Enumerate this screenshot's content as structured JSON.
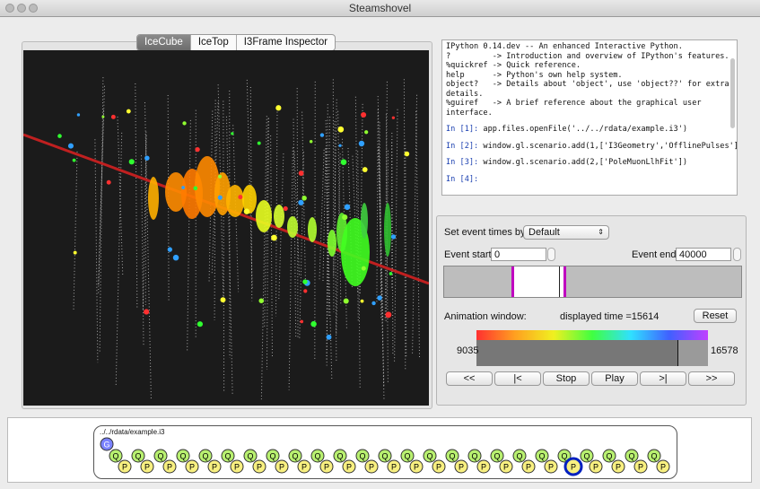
{
  "window": {
    "title": "Steamshovel"
  },
  "tabs": [
    "IceCube",
    "IceTop",
    "I3Frame Inspector"
  ],
  "console": {
    "lines": [
      "IPython 0.14.dev -- An enhanced Interactive Python.",
      "?         -> Introduction and overview of IPython's features.",
      "%quickref -> Quick reference.",
      "help      -> Python's own help system.",
      "object?   -> Details about 'object', use 'object??' for extra",
      "details.",
      "%guiref   -> A brief reference about the graphical user",
      "interface."
    ],
    "inputs": [
      {
        "prompt": "In [1]:",
        "code": "app.files.openFile('../../rdata/example.i3')"
      },
      {
        "prompt": "In [2]:",
        "code": "window.gl.scenario.add(1,['I3Geometry','OfflinePulses'])"
      },
      {
        "prompt": "In [3]:",
        "code": "window.gl.scenario.add(2,['PoleMuonLlhFit'])"
      },
      {
        "prompt": "In [4]:",
        "code": ""
      }
    ]
  },
  "event_times": {
    "set_by_label": "Set event times by:",
    "set_by_value": "Default",
    "start_label": "Event start:",
    "start_value": "0",
    "end_label": "Event end:",
    "end_value": "40000",
    "animation_label": "Animation window:",
    "displayed_time": "displayed time =15614",
    "reset": "Reset",
    "color_min": "9035",
    "color_max": "16578",
    "buttons": [
      "<<",
      "|<",
      "Stop",
      "Play",
      ">|",
      ">>"
    ]
  },
  "file_stream": {
    "path": "../../rdata/example.i3",
    "g_frame": "G",
    "q_frames": [
      "Q",
      "Q",
      "Q",
      "Q",
      "Q",
      "Q",
      "Q",
      "Q",
      "Q",
      "Q",
      "Q",
      "Q",
      "Q",
      "Q",
      "Q",
      "Q",
      "Q",
      "Q",
      "Q",
      "Q",
      "Q",
      "Q",
      "Q",
      "Q",
      "Q"
    ],
    "p_frames": [
      "P",
      "P",
      "P",
      "P",
      "P",
      "P",
      "P",
      "P",
      "P",
      "P",
      "P",
      "P",
      "P",
      "P",
      "P",
      "P",
      "P",
      "P",
      "P",
      "P",
      "P",
      "P",
      "P",
      "P",
      "P"
    ],
    "selected_p": 20
  }
}
